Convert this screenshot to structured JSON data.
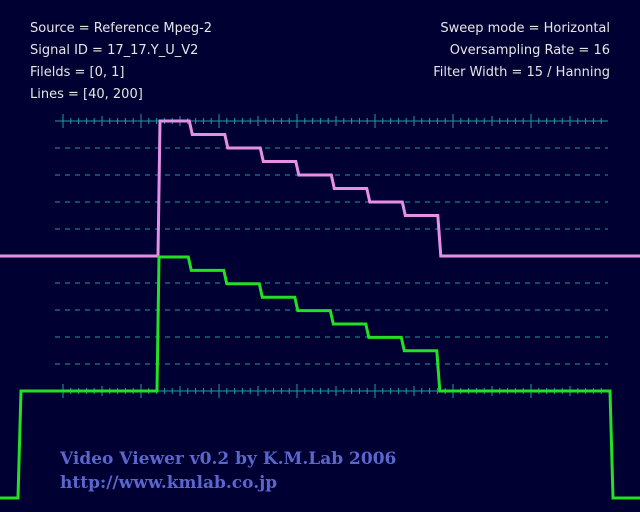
{
  "info_left": {
    "source": "Source = Reference Mpeg-2",
    "signal_id": "Signal ID = 17_17.Y_U_V2",
    "fields": "Filelds = [0, 1]",
    "lines": "Lines = [40, 200]"
  },
  "info_right": {
    "sweep_mode": "Sweep mode = Horizontal",
    "oversampling": "Oversampling Rate = 16",
    "filter_width": "Filter Width = 15 / Hanning"
  },
  "watermark": {
    "title": "Video Viewer v0.2 by K.M.Lab 2006",
    "url": "http://www.kmlab.co.jp"
  },
  "colors": {
    "background": "#000033",
    "graticule": "#1f9c9c",
    "trace_upper": "#e58fe5",
    "trace_lower": "#22e022",
    "watermark": "#5a66cc"
  },
  "traces": [
    {
      "name": "",
      "color_key": "trace_upper",
      "levels": [
        1.0,
        0.9,
        0.8,
        0.7,
        0.6,
        0.5,
        0.4,
        0.3,
        0.0
      ]
    },
    {
      "name": "",
      "color_key": "trace_lower",
      "levels": [
        1.0,
        0.9,
        0.8,
        0.7,
        0.6,
        0.5,
        0.4,
        0.3,
        0.0
      ]
    }
  ]
}
